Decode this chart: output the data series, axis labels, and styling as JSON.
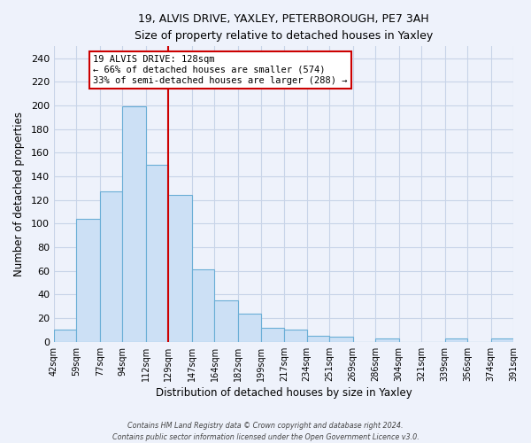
{
  "title": "19, ALVIS DRIVE, YAXLEY, PETERBOROUGH, PE7 3AH",
  "subtitle": "Size of property relative to detached houses in Yaxley",
  "xlabel": "Distribution of detached houses by size in Yaxley",
  "ylabel": "Number of detached properties",
  "bar_edges": [
    42,
    59,
    77,
    94,
    112,
    129,
    147,
    164,
    182,
    199,
    217,
    234,
    251,
    269,
    286,
    304,
    321,
    339,
    356,
    374,
    391
  ],
  "bar_heights": [
    10,
    104,
    127,
    199,
    150,
    124,
    61,
    35,
    24,
    12,
    10,
    5,
    4,
    0,
    3,
    0,
    0,
    3,
    0,
    3
  ],
  "bar_color": "#cce0f5",
  "bar_edge_color": "#6aaed6",
  "vline_x": 129,
  "vline_color": "#cc0000",
  "ylim": [
    0,
    250
  ],
  "yticks": [
    0,
    20,
    40,
    60,
    80,
    100,
    120,
    140,
    160,
    180,
    200,
    220,
    240
  ],
  "annotation_title": "19 ALVIS DRIVE: 128sqm",
  "annotation_line1": "← 66% of detached houses are smaller (574)",
  "annotation_line2": "33% of semi-detached houses are larger (288) →",
  "annotation_box_color": "#ffffff",
  "annotation_box_edge": "#cc0000",
  "footer1": "Contains HM Land Registry data © Crown copyright and database right 2024.",
  "footer2": "Contains public sector information licensed under the Open Government Licence v3.0.",
  "tick_labels": [
    "42sqm",
    "59sqm",
    "77sqm",
    "94sqm",
    "112sqm",
    "129sqm",
    "147sqm",
    "164sqm",
    "182sqm",
    "199sqm",
    "217sqm",
    "234sqm",
    "251sqm",
    "269sqm",
    "286sqm",
    "304sqm",
    "321sqm",
    "339sqm",
    "356sqm",
    "374sqm",
    "391sqm"
  ],
  "background_color": "#eef2fb",
  "grid_color": "#c8d4e8"
}
